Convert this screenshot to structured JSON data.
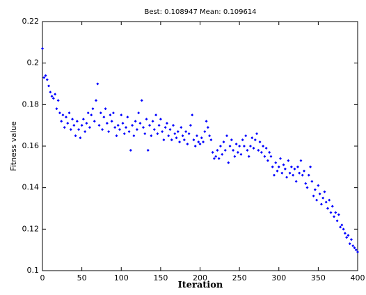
{
  "chart_data": {
    "type": "scatter",
    "title": "Best: 0.108947 Mean: 0.109614",
    "x_label": "Iteration",
    "y_label": "Fitness value",
    "color": "#0000ff",
    "xlim": [
      0,
      400
    ],
    "xticks": [
      0,
      50,
      100,
      150,
      200,
      250,
      300,
      350,
      400
    ],
    "ylim": [
      0.1,
      0.22
    ],
    "yticks": [
      0.1,
      0.12,
      0.14,
      0.16,
      0.18,
      0.2,
      0.22
    ],
    "x": [
      0,
      2,
      4,
      6,
      8,
      10,
      12,
      14,
      16,
      18,
      20,
      22,
      24,
      26,
      28,
      30,
      32,
      34,
      36,
      38,
      40,
      42,
      44,
      46,
      48,
      50,
      52,
      54,
      56,
      58,
      60,
      62,
      64,
      66,
      68,
      70,
      72,
      74,
      76,
      78,
      80,
      82,
      84,
      86,
      88,
      90,
      92,
      94,
      96,
      98,
      100,
      102,
      104,
      106,
      108,
      110,
      112,
      114,
      116,
      118,
      120,
      122,
      124,
      126,
      128,
      130,
      132,
      134,
      136,
      138,
      140,
      142,
      144,
      146,
      148,
      150,
      152,
      154,
      156,
      158,
      160,
      162,
      164,
      166,
      168,
      170,
      172,
      174,
      176,
      178,
      180,
      182,
      184,
      186,
      188,
      190,
      192,
      194,
      196,
      198,
      200,
      202,
      204,
      206,
      208,
      210,
      212,
      214,
      216,
      218,
      220,
      222,
      224,
      226,
      228,
      230,
      232,
      234,
      236,
      238,
      240,
      242,
      244,
      246,
      248,
      250,
      252,
      254,
      256,
      258,
      260,
      262,
      264,
      266,
      268,
      270,
      272,
      274,
      276,
      278,
      280,
      282,
      284,
      286,
      288,
      290,
      292,
      294,
      296,
      298,
      300,
      302,
      304,
      306,
      308,
      310,
      312,
      314,
      316,
      318,
      320,
      322,
      324,
      326,
      328,
      330,
      332,
      334,
      336,
      338,
      340,
      342,
      344,
      346,
      348,
      350,
      352,
      354,
      356,
      358,
      360,
      362,
      364,
      366,
      368,
      370,
      372,
      374,
      376,
      378,
      380,
      382,
      384,
      386,
      388,
      390,
      392,
      394,
      396,
      398,
      400
    ],
    "values": [
      0.207,
      0.193,
      0.194,
      0.192,
      0.189,
      0.186,
      0.184,
      0.183,
      0.185,
      0.178,
      0.182,
      0.176,
      0.172,
      0.175,
      0.169,
      0.174,
      0.171,
      0.176,
      0.168,
      0.173,
      0.17,
      0.165,
      0.172,
      0.168,
      0.164,
      0.17,
      0.173,
      0.167,
      0.171,
      0.176,
      0.169,
      0.175,
      0.178,
      0.172,
      0.182,
      0.19,
      0.17,
      0.176,
      0.168,
      0.174,
      0.178,
      0.171,
      0.167,
      0.175,
      0.172,
      0.176,
      0.169,
      0.165,
      0.17,
      0.168,
      0.175,
      0.171,
      0.166,
      0.169,
      0.174,
      0.167,
      0.158,
      0.17,
      0.165,
      0.172,
      0.168,
      0.176,
      0.171,
      0.182,
      0.169,
      0.166,
      0.173,
      0.158,
      0.17,
      0.165,
      0.172,
      0.168,
      0.175,
      0.166,
      0.17,
      0.173,
      0.167,
      0.163,
      0.169,
      0.171,
      0.165,
      0.168,
      0.163,
      0.17,
      0.166,
      0.164,
      0.167,
      0.162,
      0.169,
      0.165,
      0.163,
      0.167,
      0.161,
      0.166,
      0.17,
      0.175,
      0.163,
      0.16,
      0.165,
      0.162,
      0.161,
      0.164,
      0.162,
      0.167,
      0.172,
      0.169,
      0.165,
      0.163,
      0.157,
      0.154,
      0.155,
      0.158,
      0.154,
      0.16,
      0.156,
      0.162,
      0.158,
      0.165,
      0.152,
      0.16,
      0.163,
      0.158,
      0.155,
      0.161,
      0.157,
      0.16,
      0.156,
      0.163,
      0.16,
      0.165,
      0.158,
      0.155,
      0.16,
      0.164,
      0.159,
      0.163,
      0.166,
      0.158,
      0.162,
      0.157,
      0.16,
      0.155,
      0.159,
      0.153,
      0.157,
      0.155,
      0.15,
      0.146,
      0.152,
      0.148,
      0.15,
      0.154,
      0.147,
      0.151,
      0.149,
      0.145,
      0.153,
      0.147,
      0.15,
      0.146,
      0.149,
      0.143,
      0.15,
      0.147,
      0.153,
      0.146,
      0.148,
      0.142,
      0.14,
      0.146,
      0.15,
      0.143,
      0.136,
      0.139,
      0.134,
      0.141,
      0.137,
      0.132,
      0.135,
      0.138,
      0.133,
      0.13,
      0.134,
      0.128,
      0.131,
      0.126,
      0.128,
      0.124,
      0.127,
      0.121,
      0.122,
      0.12,
      0.118,
      0.116,
      0.117,
      0.113,
      0.115,
      0.112,
      0.111,
      0.11,
      0.109
    ]
  }
}
